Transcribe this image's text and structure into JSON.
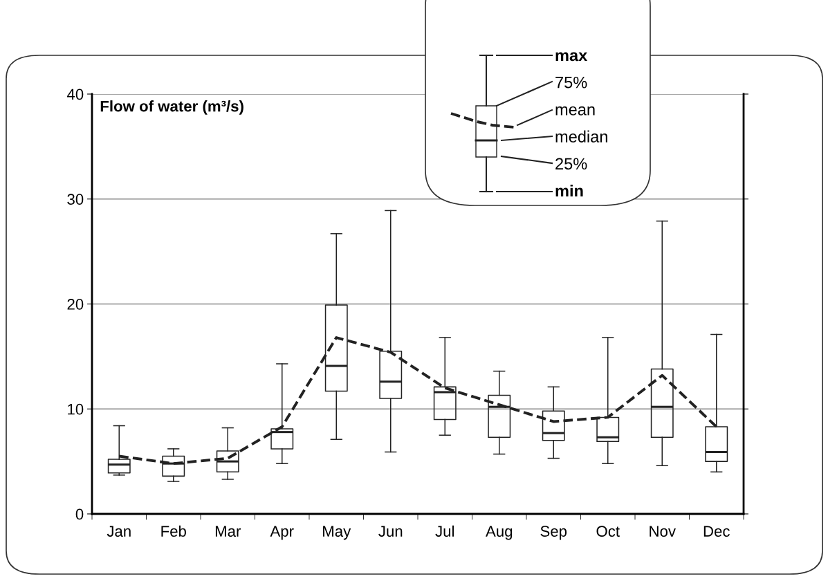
{
  "chart_data": {
    "type": "box",
    "ylabel": "Flow of water (m³/s)",
    "categories": [
      "Jan",
      "Feb",
      "Mar",
      "Apr",
      "May",
      "Jun",
      "Jul",
      "Aug",
      "Sep",
      "Oct",
      "Nov",
      "Dec"
    ],
    "boxes": [
      {
        "low": 3.7,
        "q1": 3.9,
        "median": 4.7,
        "q3": 5.2,
        "high": 8.4
      },
      {
        "low": 3.1,
        "q1": 3.6,
        "median": 4.8,
        "q3": 5.5,
        "high": 6.2
      },
      {
        "low": 3.3,
        "q1": 4.0,
        "median": 5.0,
        "q3": 6.0,
        "high": 8.2
      },
      {
        "low": 4.8,
        "q1": 6.2,
        "median": 7.8,
        "q3": 8.1,
        "high": 14.3
      },
      {
        "low": 7.1,
        "q1": 11.7,
        "median": 14.1,
        "q3": 19.9,
        "high": 26.7
      },
      {
        "low": 5.9,
        "q1": 11.0,
        "median": 12.6,
        "q3": 15.5,
        "high": 28.9
      },
      {
        "low": 7.5,
        "q1": 9.0,
        "median": 11.6,
        "q3": 12.1,
        "high": 16.8
      },
      {
        "low": 5.7,
        "q1": 7.3,
        "median": 10.2,
        "q3": 11.3,
        "high": 13.6
      },
      {
        "low": 5.3,
        "q1": 7.0,
        "median": 7.7,
        "q3": 9.8,
        "high": 12.1
      },
      {
        "low": 4.8,
        "q1": 6.9,
        "median": 7.3,
        "q3": 9.2,
        "high": 16.8
      },
      {
        "low": 4.6,
        "q1": 7.3,
        "median": 10.2,
        "q3": 13.8,
        "high": 27.9
      },
      {
        "low": 4.0,
        "q1": 5.0,
        "median": 5.9,
        "q3": 8.3,
        "high": 17.1
      }
    ],
    "series": [
      {
        "type": "line",
        "color": "#222222",
        "values": [
          5.5,
          4.8,
          5.3,
          8.3,
          16.8,
          15.4,
          12.0,
          10.4,
          8.8,
          9.2,
          13.2,
          8.3
        ]
      }
    ],
    "ylim": [
      0,
      40
    ],
    "yticks": [
      0,
      10,
      20,
      30,
      40
    ],
    "grid": "y",
    "line_style": "dashed",
    "annotations": [
      "max",
      "75%",
      "mean",
      "median",
      "25%",
      "min"
    ]
  }
}
